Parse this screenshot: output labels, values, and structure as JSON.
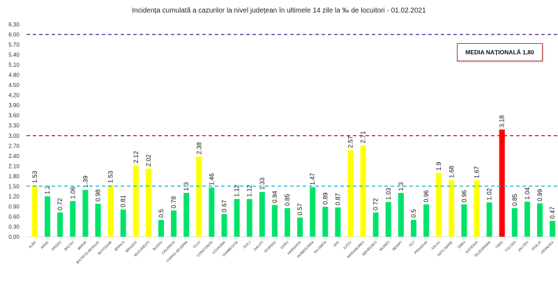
{
  "chart_data": {
    "type": "bar",
    "title": "Incidența cumulată a cazurilor la nivel județean în ultimele 14 zile la ‰ de locuitori - 01.02.2021",
    "categories": [
      "ALBA",
      "ARAD",
      "ARGES",
      "BACAU",
      "BIHOR",
      "BISTRITA NASAUD",
      "BOTOSANI",
      "BRAILA",
      "BRASOV",
      "BUCURESTI",
      "BUZAU",
      "CALARASI",
      "CARAS-SEVERIN",
      "CLUJ",
      "CONSTANTA",
      "COVASNA",
      "DAMBOVITA",
      "DOLJ",
      "GALATI",
      "GIURGIU",
      "GORJ",
      "HARGHITA",
      "HUNEDOARA",
      "IALOMITA",
      "IASI",
      "ILFOV",
      "MARAMURES",
      "MEHEDINTI",
      "MURES",
      "NEAMT",
      "OLT",
      "PRAHOVA",
      "SALAJ",
      "SATU MARE",
      "SIBIU",
      "SUCEAVA",
      "TELEORMAN",
      "TIMIS",
      "TULCEA",
      "VALCEA",
      "VASLUI",
      "VRANCEA"
    ],
    "values": [
      1.53,
      1.2,
      0.72,
      1.06,
      1.39,
      0.98,
      1.53,
      0.81,
      2.12,
      2.02,
      0.5,
      0.78,
      1.3,
      2.38,
      1.46,
      0.67,
      1.12,
      1.12,
      1.33,
      0.94,
      0.85,
      0.57,
      1.47,
      0.89,
      0.87,
      2.57,
      2.71,
      0.72,
      1.03,
      1.3,
      0.5,
      0.96,
      1.9,
      1.68,
      0.96,
      1.67,
      1.02,
      3.18,
      0.85,
      1.04,
      0.99,
      0.47
    ],
    "ylim": [
      0,
      6.3
    ],
    "yticks": [
      "0.00",
      "0.30",
      "0.60",
      "0.90",
      "1.20",
      "1.50",
      "1.80",
      "2.10",
      "2.40",
      "2.70",
      "3.00",
      "3.30",
      "3.60",
      "3.90",
      "4.20",
      "4.50",
      "4.80",
      "5.10",
      "5.40",
      "5.70",
      "6.00",
      "6.30"
    ],
    "thresholds": [
      {
        "value": 1.5,
        "color": "#2bb5d0"
      },
      {
        "value": 3.0,
        "color": "#d42020"
      },
      {
        "value": 6.0,
        "color": "#5b3aa8"
      }
    ],
    "colors": {
      "low": "#00e36a",
      "medium": "#ffff00",
      "high": "#ff0000"
    },
    "grid": false,
    "annotation": "MEDIA NAȚIONALĂ  1,80"
  }
}
